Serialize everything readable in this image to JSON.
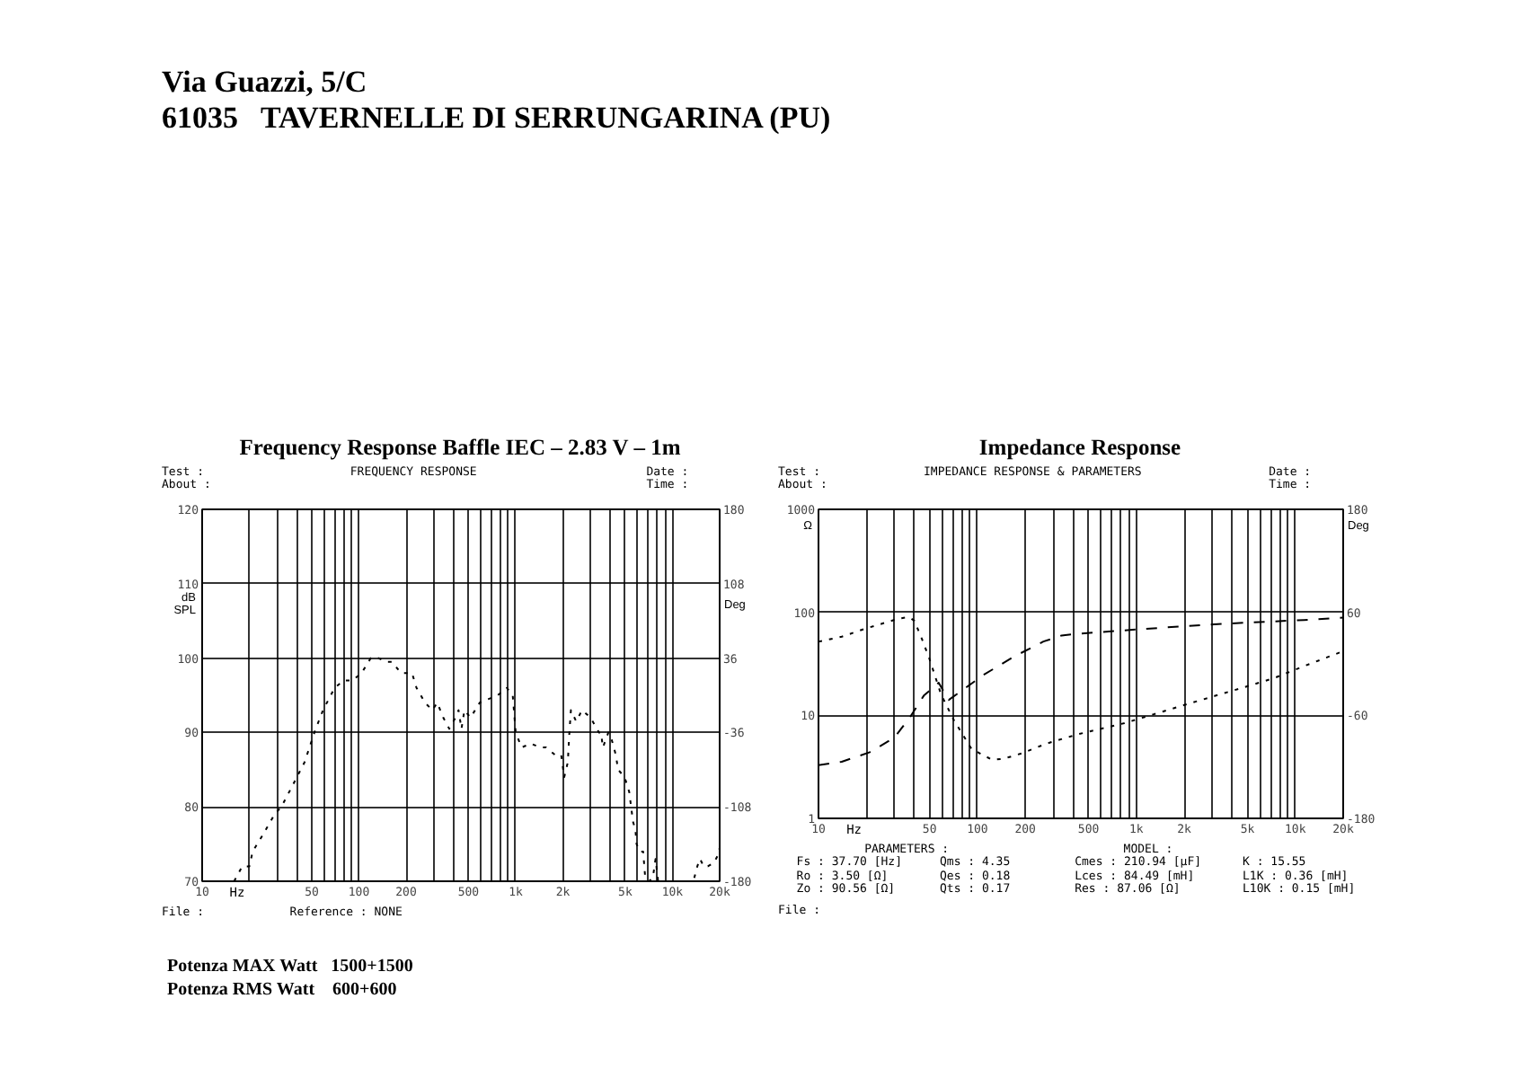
{
  "chart_data": [
    {
      "type": "other",
      "annotations": [
        "Via Guazzi, 5/C",
        "61035   TAVERNELLE DI SERRUNGARINA (PU)"
      ]
    },
    {
      "type": "line",
      "title": "Frequency Response Baffle IEC – 2.83 V – 1m",
      "xlabel": "Hz",
      "ylabel": "dB SPL",
      "y2label": "Deg",
      "log": "x",
      "grid": true,
      "line_style": "dotted",
      "xlim": [
        10,
        20000
      ],
      "ylim": [
        70,
        120
      ],
      "y2lim": [
        -180,
        180
      ],
      "xticks": [
        10,
        {
          "value": 20,
          "label": null
        },
        {
          "value": 30,
          "label": null
        },
        {
          "value": 40,
          "label": null
        },
        50,
        {
          "value": 60,
          "label": null
        },
        {
          "value": 70,
          "label": null
        },
        {
          "value": 80,
          "label": null
        },
        {
          "value": 90,
          "label": null
        },
        100,
        200,
        {
          "value": 300,
          "label": null
        },
        {
          "value": 400,
          "label": null
        },
        500,
        {
          "value": 600,
          "label": null
        },
        {
          "value": 700,
          "label": null
        },
        {
          "value": 800,
          "label": null
        },
        {
          "value": 900,
          "label": null
        },
        {
          "value": 1000,
          "label": "1k"
        },
        {
          "value": 2000,
          "label": "2k"
        },
        {
          "value": 3000,
          "label": null
        },
        {
          "value": 4000,
          "label": null
        },
        {
          "value": 5000,
          "label": "5k"
        },
        {
          "value": 6000,
          "label": null
        },
        {
          "value": 7000,
          "label": null
        },
        {
          "value": 8000,
          "label": null
        },
        {
          "value": 9000,
          "label": null
        },
        {
          "value": 10000,
          "label": "10k"
        },
        {
          "value": 20000,
          "label": "20k"
        }
      ],
      "yticks": [
        70,
        80,
        90,
        100,
        110,
        120
      ],
      "y2ticks": [
        -180,
        -108,
        -36,
        36,
        108,
        180
      ],
      "x": [
        16,
        18,
        20,
        21,
        24,
        29,
        32,
        38,
        45,
        52,
        59,
        70,
        80,
        91,
        104,
        119,
        133,
        149,
        163,
        185,
        218,
        233,
        264,
        294,
        316,
        345,
        377,
        413,
        432,
        451,
        471,
        515,
        589,
        672,
        768,
        877,
        957,
        1000,
        1090,
        1250,
        1430,
        1560,
        1780,
        1950,
        2040,
        2150,
        2200,
        2250,
        2430,
        2650,
        3000,
        3400,
        3500,
        3600,
        3900,
        4100,
        4350,
        4500,
        4950,
        5300,
        5600,
        5800,
        5900,
        6200,
        6500,
        6700,
        7100,
        7500,
        7800,
        8100,
        9000,
        10000,
        12000,
        13600,
        14400,
        15000,
        15800,
        16800,
        18400,
        19500,
        20000
      ],
      "series": [
        {
          "color": "#000000",
          "values": [
            70,
            72,
            72,
            74,
            76,
            79,
            80,
            83,
            86,
            90,
            93,
            96,
            97,
            97,
            98,
            100,
            100,
            99.5,
            99.5,
            98,
            98,
            96,
            94,
            93,
            94,
            92,
            90.5,
            92,
            93,
            90.5,
            93,
            92,
            94,
            94.5,
            95,
            96,
            95,
            90,
            88,
            88.5,
            88,
            88,
            87,
            87,
            84,
            86,
            90,
            93,
            91.5,
            93,
            92,
            90,
            90,
            88,
            90,
            89,
            87,
            85,
            84,
            82,
            78,
            77,
            75,
            74,
            74,
            70.5,
            70,
            70.5,
            73,
            70,
            70,
            70,
            70,
            70,
            72,
            73,
            72,
            72,
            72.5,
            73.5,
            74.5
          ]
        }
      ],
      "annotations": [
        "Test :",
        "FREQUENCY RESPONSE",
        "Date :",
        "About :",
        "Time :",
        "File :",
        "Reference : NONE"
      ]
    },
    {
      "type": "line",
      "title": "Impedance Response",
      "xlabel": "Hz",
      "ylabel": "Ω",
      "y2label": "Deg",
      "log": "xy",
      "grid": true,
      "xlim": [
        10,
        20000
      ],
      "ylim": [
        1,
        1000
      ],
      "y2lim": [
        -180,
        180
      ],
      "xticks": [
        10,
        {
          "value": 20,
          "label": null
        },
        {
          "value": 30,
          "label": null
        },
        {
          "value": 40,
          "label": null
        },
        50,
        {
          "value": 60,
          "label": null
        },
        {
          "value": 70,
          "label": null
        },
        {
          "value": 80,
          "label": null
        },
        {
          "value": 90,
          "label": null
        },
        100,
        200,
        {
          "value": 300,
          "label": null
        },
        {
          "value": 400,
          "label": null
        },
        500,
        {
          "value": 600,
          "label": null
        },
        {
          "value": 700,
          "label": null
        },
        {
          "value": 800,
          "label": null
        },
        {
          "value": 900,
          "label": null
        },
        {
          "value": 1000,
          "label": "1k"
        },
        {
          "value": 2000,
          "label": "2k"
        },
        {
          "value": 3000,
          "label": null
        },
        {
          "value": 4000,
          "label": null
        },
        {
          "value": 5000,
          "label": "5k"
        },
        {
          "value": 6000,
          "label": null
        },
        {
          "value": 7000,
          "label": null
        },
        {
          "value": 8000,
          "label": null
        },
        {
          "value": 9000,
          "label": null
        },
        {
          "value": 10000,
          "label": "10k"
        },
        {
          "value": 20000,
          "label": "20k"
        }
      ],
      "yticks": [
        1,
        10,
        100,
        1000
      ],
      "y2ticks": [
        -180,
        -60,
        60,
        180
      ],
      "series": [
        {
          "color": "#000000",
          "line_style": "dotted",
          "x": [
            10,
            14,
            20,
            26,
            32,
            37,
            40,
            44,
            50,
            59,
            71,
            92,
            124,
            147,
            192,
            270,
            420,
            840,
            1300,
            2000,
            3100,
            4800,
            7300,
            11300,
            20000
          ],
          "values": [
            52,
            58,
            70,
            79,
            87,
            90,
            83,
            59,
            35,
            16,
            9,
            4.7,
            3.7,
            3.8,
            4.3,
            5.3,
            6.5,
            8.4,
            10.3,
            12.6,
            15.4,
            18.8,
            22.9,
            30,
            42
          ]
        },
        {
          "color": "#000000",
          "line_style": "dashed",
          "axis": "y2",
          "x": [
            10,
            14,
            21,
            30,
            38,
            46,
            57,
            66,
            109,
            168,
            260,
            338,
            420,
            840,
            2000,
            4800,
            11300,
            20000
          ],
          "values": [
            -118,
            -114,
            -103,
            -86,
            -61,
            -37,
            -22,
            -42,
            -13,
            8,
            26,
            33,
            35,
            39,
            44,
            48,
            51,
            54
          ]
        }
      ],
      "annotations": [
        "Test :",
        "IMPEDANCE RESPONSE & PARAMETERS",
        "Date :",
        "About :",
        "Time :",
        "File :",
        "PARAMETERS :",
        "MODEL :",
        "Fs : 37.70 [Hz]",
        "Qms : 4.35",
        "Cmes : 210.94 [µF]",
        "K : 15.55",
        "Ro : 3.50 [Ω]",
        "Qes : 0.18",
        "Lces : 84.49 [mH]",
        "L1K : 0.36 [mH]",
        "Zo : 90.56 [Ω]",
        "Qts : 0.17",
        "Res : 87.06 [Ω]",
        "L10K : 0.15 [mH]"
      ]
    },
    {
      "type": "other",
      "annotations": [
        "Potenza MAX Watt   1500+1500",
        "Potenza RMS Watt    600+600"
      ]
    }
  ]
}
